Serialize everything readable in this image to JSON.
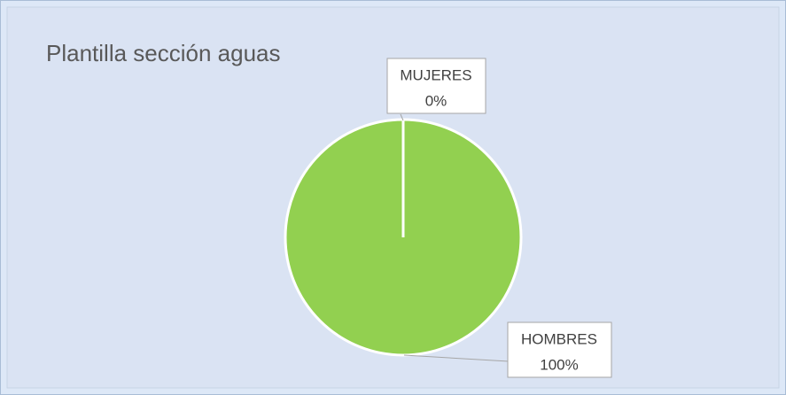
{
  "chart_data": {
    "type": "pie",
    "title": "Plantilla sección aguas",
    "categories": [
      "MUJERES",
      "HOMBRES"
    ],
    "values": [
      0,
      100
    ],
    "value_labels": [
      "0%",
      "100%"
    ],
    "colors": [
      "#92d050",
      "#92d050"
    ]
  }
}
